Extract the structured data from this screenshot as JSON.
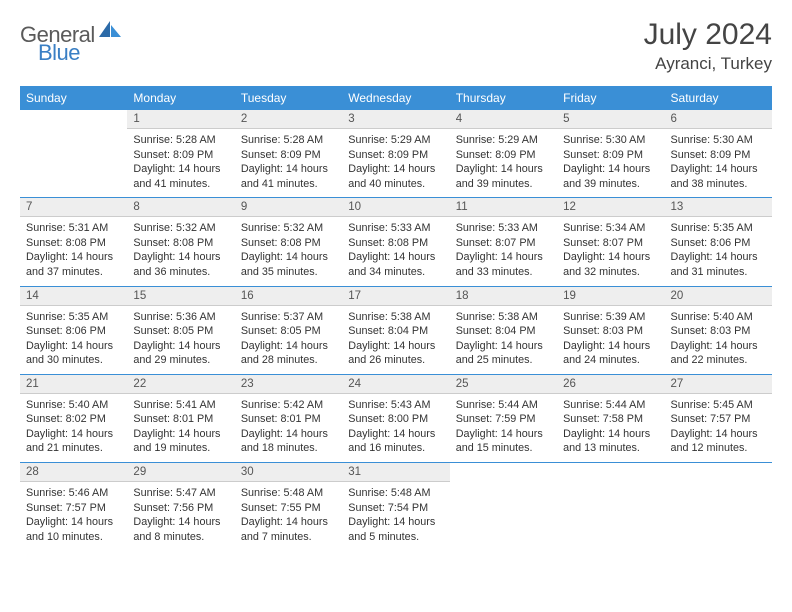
{
  "brand": {
    "general": "General",
    "blue": "Blue"
  },
  "title": {
    "month": "July 2024",
    "location": "Ayranci, Turkey"
  },
  "colors": {
    "header_bg": "#3a8fd6",
    "header_text": "#ffffff",
    "daynum_bg": "#eeeeee",
    "sep": "#3a8fd6",
    "logo_general": "#5a5a5a",
    "logo_blue": "#3a7fc4",
    "text": "#333333"
  },
  "weekdays": [
    "Sunday",
    "Monday",
    "Tuesday",
    "Wednesday",
    "Thursday",
    "Friday",
    "Saturday"
  ],
  "weeks": [
    {
      "days": [
        {
          "num": "",
          "sunrise": "",
          "sunset": "",
          "daylight": ""
        },
        {
          "num": "1",
          "sunrise": "Sunrise: 5:28 AM",
          "sunset": "Sunset: 8:09 PM",
          "daylight": "Daylight: 14 hours and 41 minutes."
        },
        {
          "num": "2",
          "sunrise": "Sunrise: 5:28 AM",
          "sunset": "Sunset: 8:09 PM",
          "daylight": "Daylight: 14 hours and 41 minutes."
        },
        {
          "num": "3",
          "sunrise": "Sunrise: 5:29 AM",
          "sunset": "Sunset: 8:09 PM",
          "daylight": "Daylight: 14 hours and 40 minutes."
        },
        {
          "num": "4",
          "sunrise": "Sunrise: 5:29 AM",
          "sunset": "Sunset: 8:09 PM",
          "daylight": "Daylight: 14 hours and 39 minutes."
        },
        {
          "num": "5",
          "sunrise": "Sunrise: 5:30 AM",
          "sunset": "Sunset: 8:09 PM",
          "daylight": "Daylight: 14 hours and 39 minutes."
        },
        {
          "num": "6",
          "sunrise": "Sunrise: 5:30 AM",
          "sunset": "Sunset: 8:09 PM",
          "daylight": "Daylight: 14 hours and 38 minutes."
        }
      ]
    },
    {
      "days": [
        {
          "num": "7",
          "sunrise": "Sunrise: 5:31 AM",
          "sunset": "Sunset: 8:08 PM",
          "daylight": "Daylight: 14 hours and 37 minutes."
        },
        {
          "num": "8",
          "sunrise": "Sunrise: 5:32 AM",
          "sunset": "Sunset: 8:08 PM",
          "daylight": "Daylight: 14 hours and 36 minutes."
        },
        {
          "num": "9",
          "sunrise": "Sunrise: 5:32 AM",
          "sunset": "Sunset: 8:08 PM",
          "daylight": "Daylight: 14 hours and 35 minutes."
        },
        {
          "num": "10",
          "sunrise": "Sunrise: 5:33 AM",
          "sunset": "Sunset: 8:08 PM",
          "daylight": "Daylight: 14 hours and 34 minutes."
        },
        {
          "num": "11",
          "sunrise": "Sunrise: 5:33 AM",
          "sunset": "Sunset: 8:07 PM",
          "daylight": "Daylight: 14 hours and 33 minutes."
        },
        {
          "num": "12",
          "sunrise": "Sunrise: 5:34 AM",
          "sunset": "Sunset: 8:07 PM",
          "daylight": "Daylight: 14 hours and 32 minutes."
        },
        {
          "num": "13",
          "sunrise": "Sunrise: 5:35 AM",
          "sunset": "Sunset: 8:06 PM",
          "daylight": "Daylight: 14 hours and 31 minutes."
        }
      ]
    },
    {
      "days": [
        {
          "num": "14",
          "sunrise": "Sunrise: 5:35 AM",
          "sunset": "Sunset: 8:06 PM",
          "daylight": "Daylight: 14 hours and 30 minutes."
        },
        {
          "num": "15",
          "sunrise": "Sunrise: 5:36 AM",
          "sunset": "Sunset: 8:05 PM",
          "daylight": "Daylight: 14 hours and 29 minutes."
        },
        {
          "num": "16",
          "sunrise": "Sunrise: 5:37 AM",
          "sunset": "Sunset: 8:05 PM",
          "daylight": "Daylight: 14 hours and 28 minutes."
        },
        {
          "num": "17",
          "sunrise": "Sunrise: 5:38 AM",
          "sunset": "Sunset: 8:04 PM",
          "daylight": "Daylight: 14 hours and 26 minutes."
        },
        {
          "num": "18",
          "sunrise": "Sunrise: 5:38 AM",
          "sunset": "Sunset: 8:04 PM",
          "daylight": "Daylight: 14 hours and 25 minutes."
        },
        {
          "num": "19",
          "sunrise": "Sunrise: 5:39 AM",
          "sunset": "Sunset: 8:03 PM",
          "daylight": "Daylight: 14 hours and 24 minutes."
        },
        {
          "num": "20",
          "sunrise": "Sunrise: 5:40 AM",
          "sunset": "Sunset: 8:03 PM",
          "daylight": "Daylight: 14 hours and 22 minutes."
        }
      ]
    },
    {
      "days": [
        {
          "num": "21",
          "sunrise": "Sunrise: 5:40 AM",
          "sunset": "Sunset: 8:02 PM",
          "daylight": "Daylight: 14 hours and 21 minutes."
        },
        {
          "num": "22",
          "sunrise": "Sunrise: 5:41 AM",
          "sunset": "Sunset: 8:01 PM",
          "daylight": "Daylight: 14 hours and 19 minutes."
        },
        {
          "num": "23",
          "sunrise": "Sunrise: 5:42 AM",
          "sunset": "Sunset: 8:01 PM",
          "daylight": "Daylight: 14 hours and 18 minutes."
        },
        {
          "num": "24",
          "sunrise": "Sunrise: 5:43 AM",
          "sunset": "Sunset: 8:00 PM",
          "daylight": "Daylight: 14 hours and 16 minutes."
        },
        {
          "num": "25",
          "sunrise": "Sunrise: 5:44 AM",
          "sunset": "Sunset: 7:59 PM",
          "daylight": "Daylight: 14 hours and 15 minutes."
        },
        {
          "num": "26",
          "sunrise": "Sunrise: 5:44 AM",
          "sunset": "Sunset: 7:58 PM",
          "daylight": "Daylight: 14 hours and 13 minutes."
        },
        {
          "num": "27",
          "sunrise": "Sunrise: 5:45 AM",
          "sunset": "Sunset: 7:57 PM",
          "daylight": "Daylight: 14 hours and 12 minutes."
        }
      ]
    },
    {
      "days": [
        {
          "num": "28",
          "sunrise": "Sunrise: 5:46 AM",
          "sunset": "Sunset: 7:57 PM",
          "daylight": "Daylight: 14 hours and 10 minutes."
        },
        {
          "num": "29",
          "sunrise": "Sunrise: 5:47 AM",
          "sunset": "Sunset: 7:56 PM",
          "daylight": "Daylight: 14 hours and 8 minutes."
        },
        {
          "num": "30",
          "sunrise": "Sunrise: 5:48 AM",
          "sunset": "Sunset: 7:55 PM",
          "daylight": "Daylight: 14 hours and 7 minutes."
        },
        {
          "num": "31",
          "sunrise": "Sunrise: 5:48 AM",
          "sunset": "Sunset: 7:54 PM",
          "daylight": "Daylight: 14 hours and 5 minutes."
        },
        {
          "num": "",
          "sunrise": "",
          "sunset": "",
          "daylight": ""
        },
        {
          "num": "",
          "sunrise": "",
          "sunset": "",
          "daylight": ""
        },
        {
          "num": "",
          "sunrise": "",
          "sunset": "",
          "daylight": ""
        }
      ]
    }
  ]
}
